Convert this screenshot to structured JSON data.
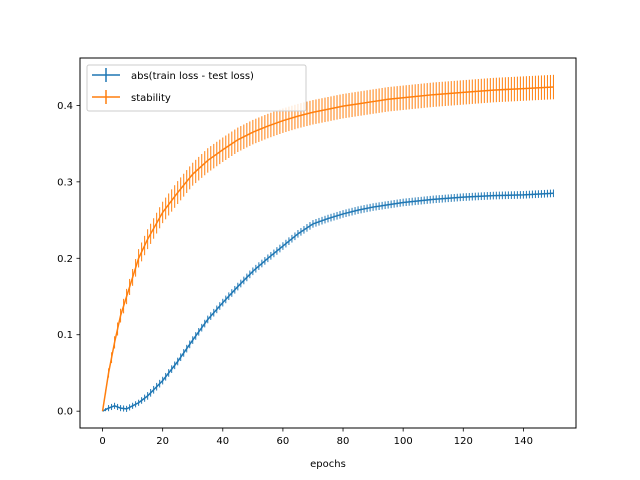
{
  "chart_data": {
    "type": "line",
    "xlabel": "epochs",
    "ylabel": "",
    "xlim": [
      -7.5,
      157.5
    ],
    "ylim": [
      -0.022,
      0.462
    ],
    "x_ticks": [
      0,
      20,
      40,
      60,
      80,
      100,
      120,
      140
    ],
    "y_ticks": [
      0.0,
      0.1,
      0.2,
      0.3,
      0.4
    ],
    "y_tick_labels": [
      "0.0",
      "0.1",
      "0.2",
      "0.3",
      "0.4"
    ],
    "legend_position": "upper-left",
    "series": [
      {
        "name": "abs(train loss - test loss)",
        "color": "#1f77b4",
        "x": [
          0,
          2,
          4,
          6,
          8,
          10,
          12,
          15,
          20,
          25,
          30,
          35,
          40,
          45,
          50,
          55,
          60,
          65,
          70,
          75,
          80,
          85,
          90,
          95,
          100,
          110,
          120,
          130,
          140,
          150
        ],
        "y": [
          0.0,
          0.004,
          0.007,
          0.004,
          0.003,
          0.007,
          0.011,
          0.02,
          0.04,
          0.065,
          0.093,
          0.12,
          0.142,
          0.163,
          0.183,
          0.2,
          0.216,
          0.232,
          0.245,
          0.252,
          0.258,
          0.263,
          0.267,
          0.27,
          0.273,
          0.277,
          0.28,
          0.282,
          0.283,
          0.285
        ],
        "err": [
          0.0,
          0.004,
          0.004,
          0.004,
          0.004,
          0.004,
          0.004,
          0.005,
          0.005,
          0.005,
          0.005,
          0.005,
          0.005,
          0.005,
          0.005,
          0.005,
          0.005,
          0.005,
          0.005,
          0.005,
          0.005,
          0.005,
          0.005,
          0.005,
          0.005,
          0.005,
          0.005,
          0.005,
          0.005,
          0.005
        ]
      },
      {
        "name": "stability",
        "color": "#ff7f0e",
        "x": [
          0,
          2,
          4,
          6,
          8,
          10,
          12,
          15,
          20,
          25,
          30,
          35,
          40,
          45,
          50,
          55,
          60,
          65,
          70,
          75,
          80,
          85,
          90,
          95,
          100,
          110,
          120,
          130,
          140,
          150
        ],
        "y": [
          0.0,
          0.05,
          0.09,
          0.125,
          0.15,
          0.175,
          0.2,
          0.225,
          0.26,
          0.286,
          0.31,
          0.328,
          0.342,
          0.355,
          0.365,
          0.373,
          0.38,
          0.386,
          0.391,
          0.395,
          0.399,
          0.402,
          0.405,
          0.408,
          0.41,
          0.414,
          0.417,
          0.42,
          0.422,
          0.424
        ],
        "err": [
          0.0,
          0.006,
          0.008,
          0.009,
          0.01,
          0.011,
          0.012,
          0.013,
          0.014,
          0.015,
          0.015,
          0.016,
          0.016,
          0.016,
          0.016,
          0.016,
          0.016,
          0.016,
          0.016,
          0.016,
          0.016,
          0.016,
          0.016,
          0.016,
          0.016,
          0.016,
          0.016,
          0.016,
          0.016,
          0.016
        ]
      }
    ]
  }
}
